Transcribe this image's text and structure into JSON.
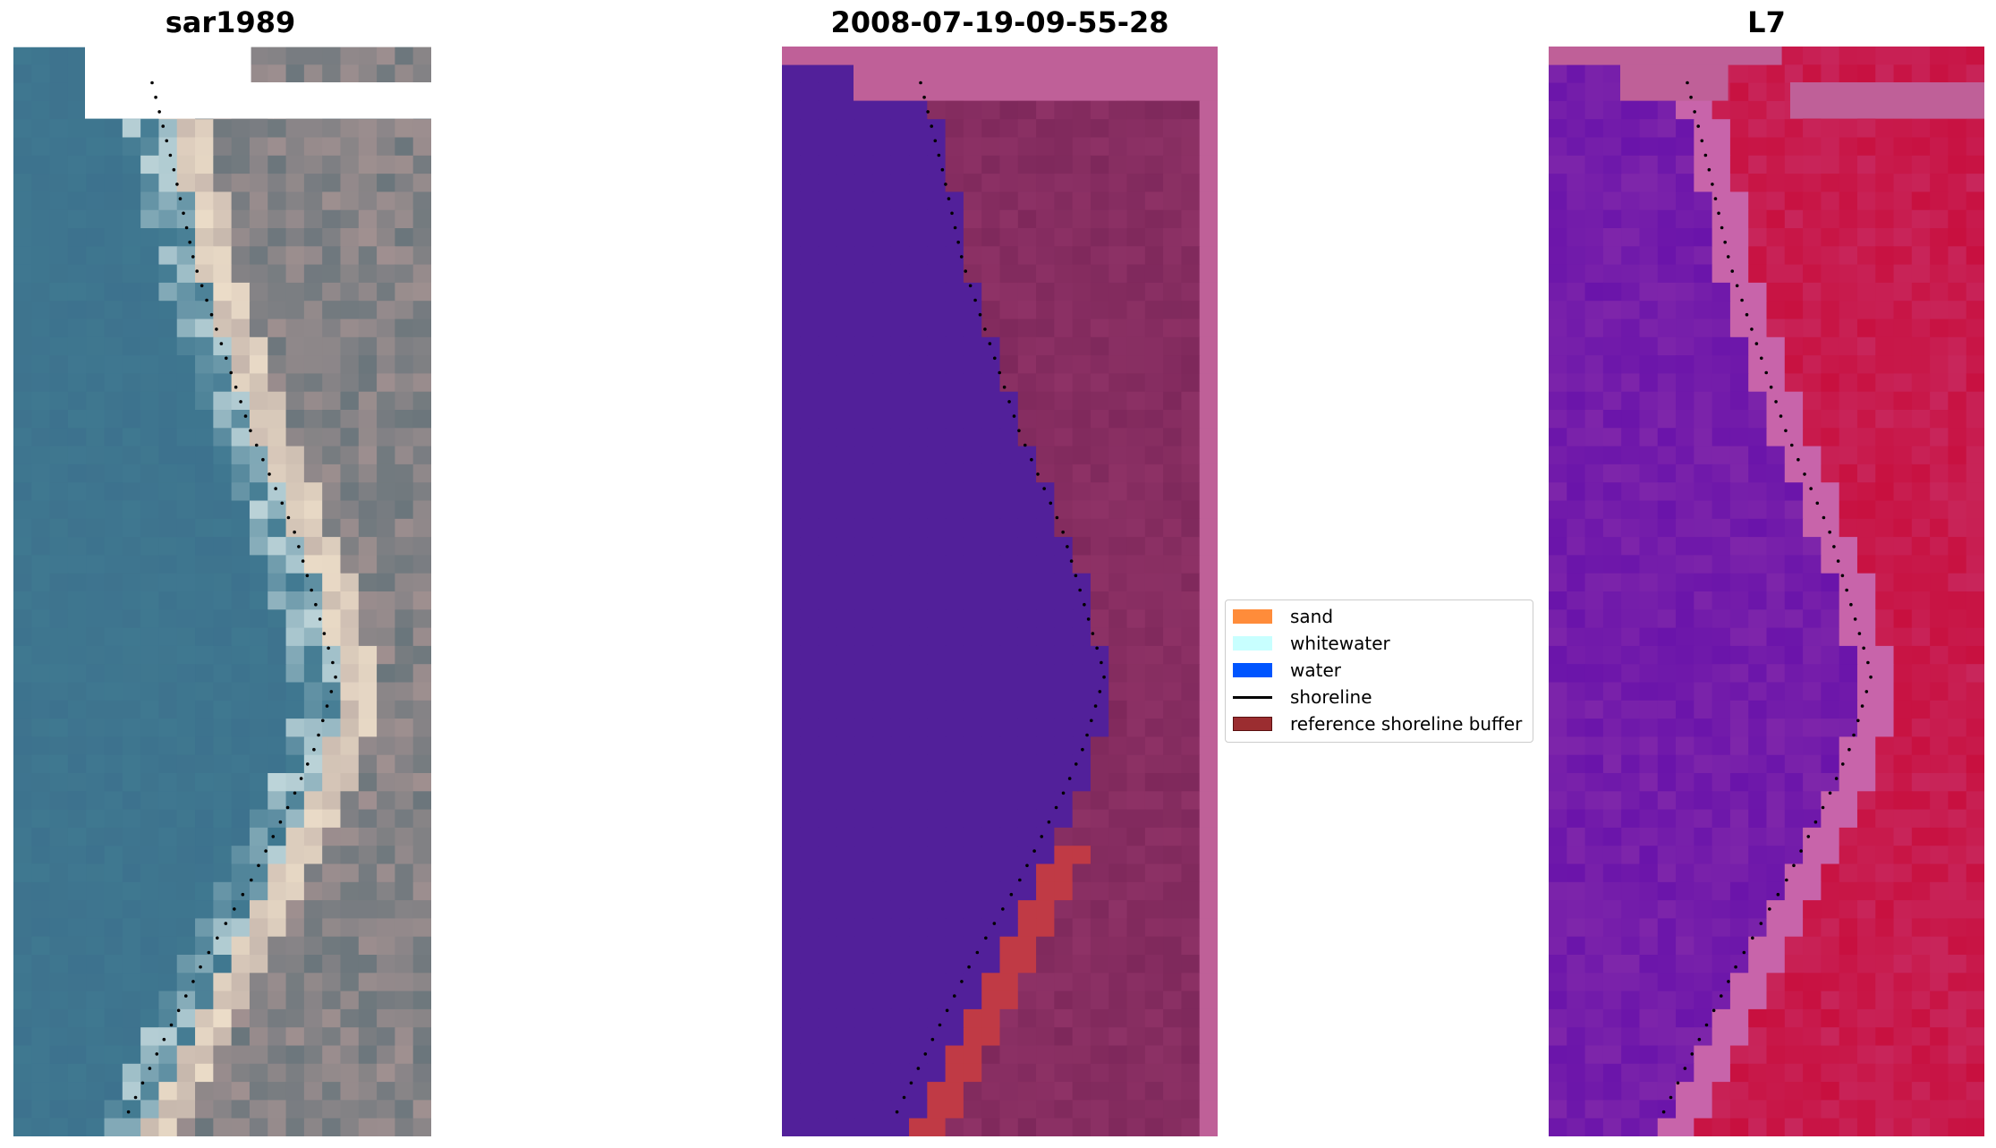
{
  "panels": [
    {
      "title": "sar1989"
    },
    {
      "title": "2008-07-19-09-55-28"
    },
    {
      "title": "L7"
    }
  ],
  "legend": {
    "items": [
      {
        "label": "sand",
        "color": "#ff8c3a",
        "kind": "patch"
      },
      {
        "label": "whitewater",
        "color": "#c8ffff",
        "kind": "patch"
      },
      {
        "label": "water",
        "color": "#0055ff",
        "kind": "patch"
      },
      {
        "label": "shoreline",
        "color": "#000000",
        "kind": "line"
      },
      {
        "label": "reference shoreline buffer",
        "color": "#9b2d30",
        "kind": "patch"
      }
    ]
  },
  "colors": {
    "rgb_water": "#3f7890",
    "rgb_land": "#a09090",
    "class_water": "#52209a",
    "class_land": "#8e3266",
    "class_buffer": "#c03a45",
    "class_nodata": "#bf6098",
    "index_water": "#6a14aa",
    "index_land": "#c8103f",
    "index_nodata": "#bf6098"
  }
}
